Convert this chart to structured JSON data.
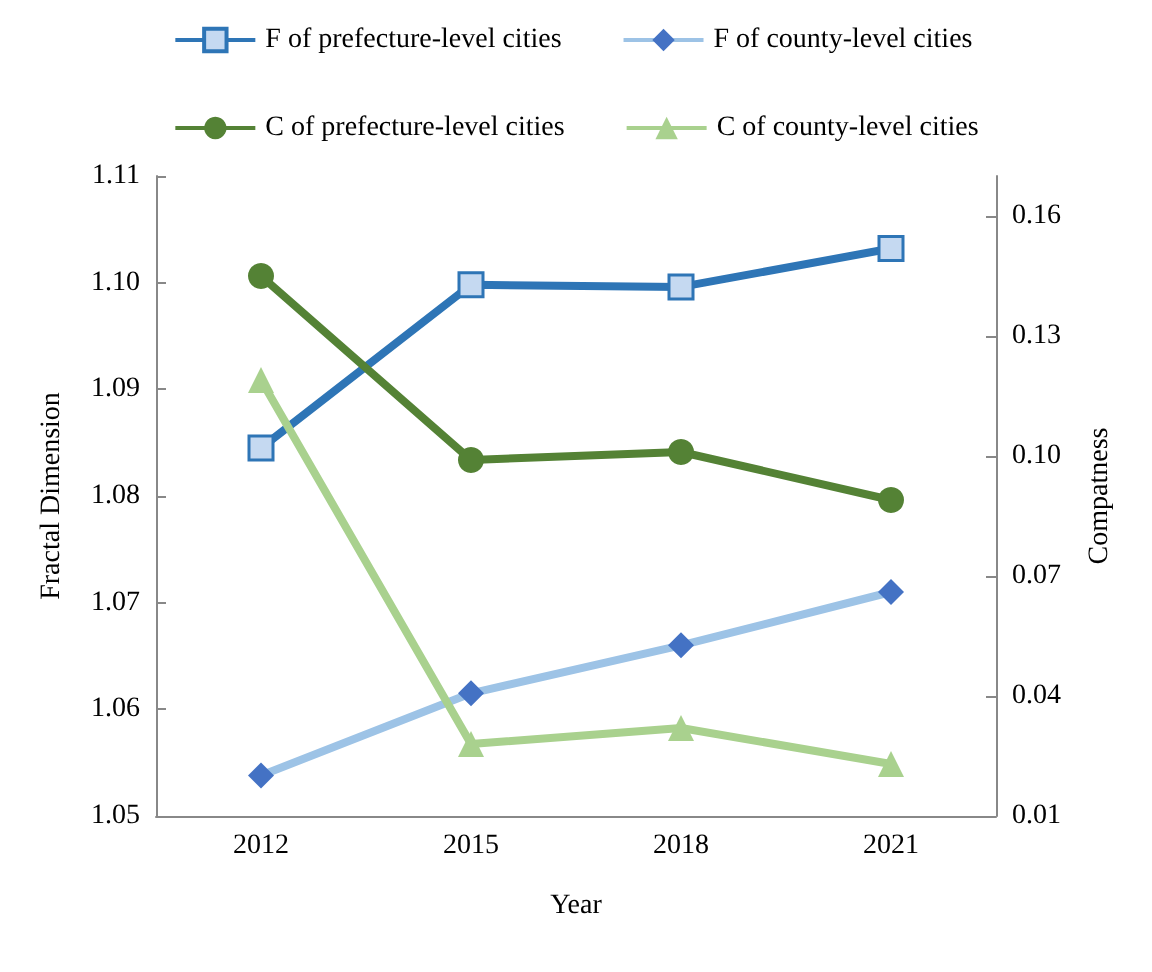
{
  "chart_data": {
    "type": "line",
    "xlabel": "Year",
    "ylabel": "Fractal Dimension",
    "y2label": "Compatness",
    "categories": [
      "2012",
      "2015",
      "2018",
      "2021"
    ],
    "series": [
      {
        "name": "F of prefecture-level cities",
        "color": "#2e75b6",
        "marker": "square",
        "values": [
          1.0845,
          1.0998,
          1.0996,
          1.1032
        ]
      },
      {
        "name": "F of county-level cities",
        "color": "#9dc3e6",
        "marker": "diamond",
        "values": [
          1.0538,
          1.0615,
          1.066,
          1.071
        ]
      },
      {
        "name": "C of prefecture-level cities",
        "color": "#548235",
        "marker": "circle",
        "axis": "y2",
        "values": [
          0.145,
          0.099,
          0.101,
          0.089
        ]
      },
      {
        "name": "C of county-level cities",
        "color": "#a9d18e",
        "marker": "triangle",
        "axis": "y2",
        "values": [
          0.119,
          0.028,
          0.032,
          0.023
        ]
      }
    ],
    "ylim": [
      1.05,
      1.11
    ],
    "yticks": [
      1.05,
      1.06,
      1.07,
      1.08,
      1.09,
      {
        "value": 1.1,
        "label": "1.10"
      },
      1.11
    ],
    "y2lim": [
      0.01,
      0.17
    ],
    "y2ticks": [
      0.01,
      0.04,
      0.07,
      {
        "value": 0.1,
        "label": "0.10"
      },
      0.13,
      0.16
    ],
    "grid": false,
    "legend": "top"
  }
}
